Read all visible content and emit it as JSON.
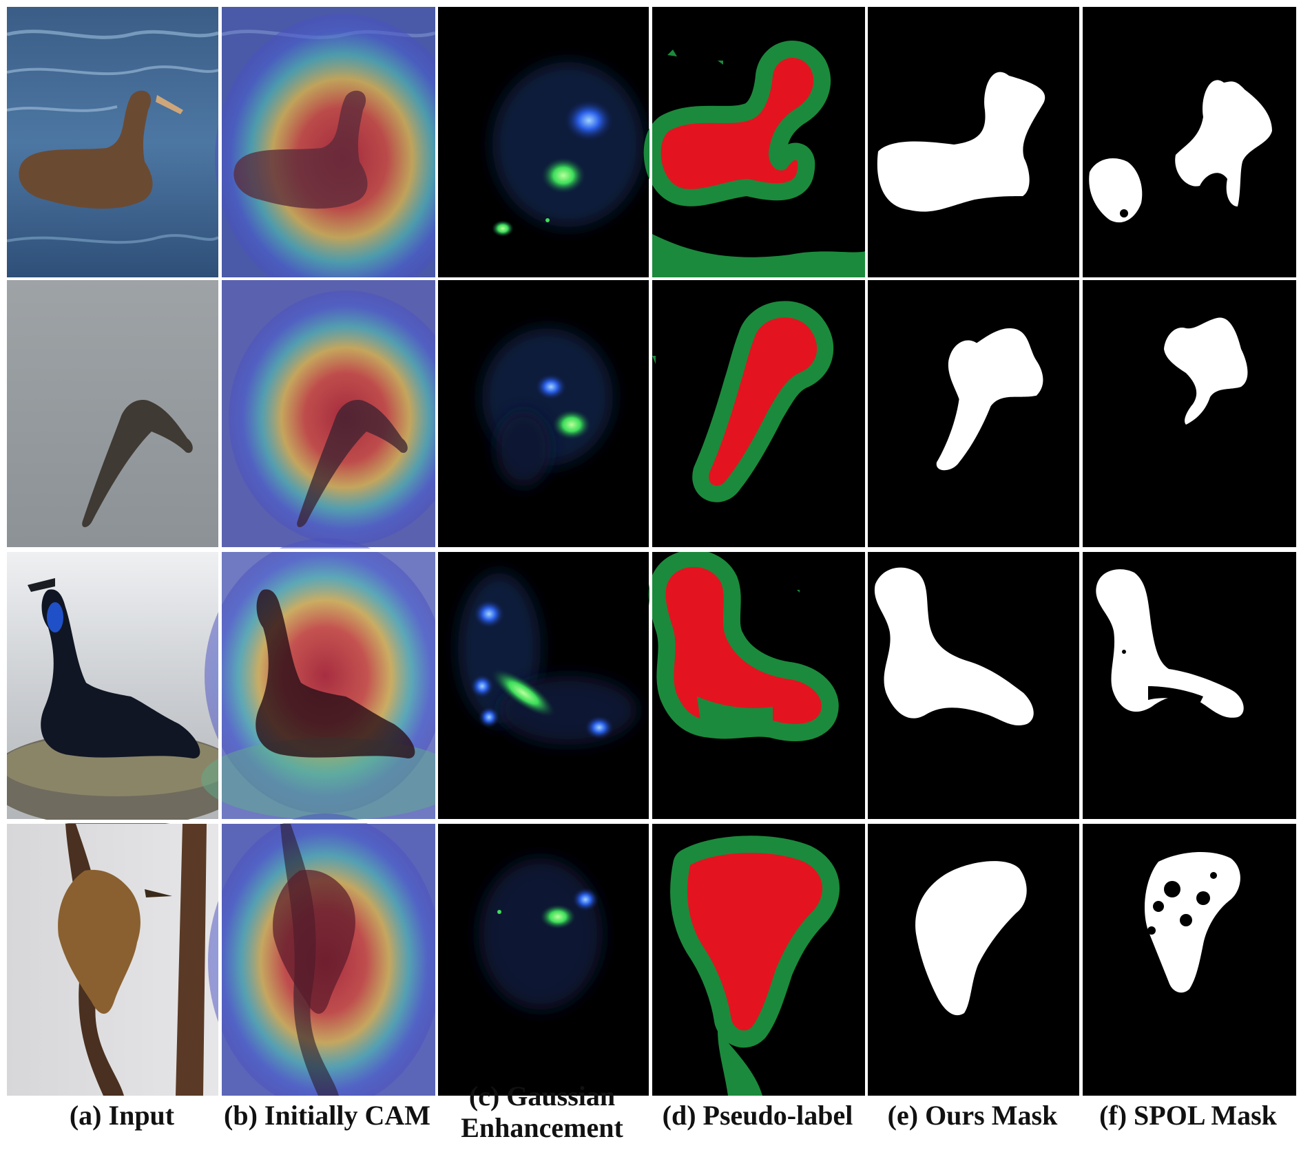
{
  "figure": {
    "rows": [
      {
        "subject": "albatross-on-water"
      },
      {
        "subject": "albatross-in-flight"
      },
      {
        "subject": "cormorant-on-nest"
      },
      {
        "subject": "wren-on-branch"
      }
    ],
    "colors": {
      "separator": "#ffffff",
      "mask_background": "#000000",
      "pseudo_foreground": "#e3141f",
      "pseudo_boundary": "#1b8a3c",
      "mask_foreground": "#ffffff",
      "gaussian_blob": "#3dff6a",
      "gaussian_halo": "#1e3cff"
    }
  },
  "captions": {
    "a": "(a) Input",
    "b": "(b) Initially CAM",
    "c_line1": "(c) Gaussian",
    "c_line2": "Enhancement",
    "d": "(d) Pseudo-label",
    "e": "(e) Ours Mask",
    "f": "(f) SPOL Mask"
  }
}
